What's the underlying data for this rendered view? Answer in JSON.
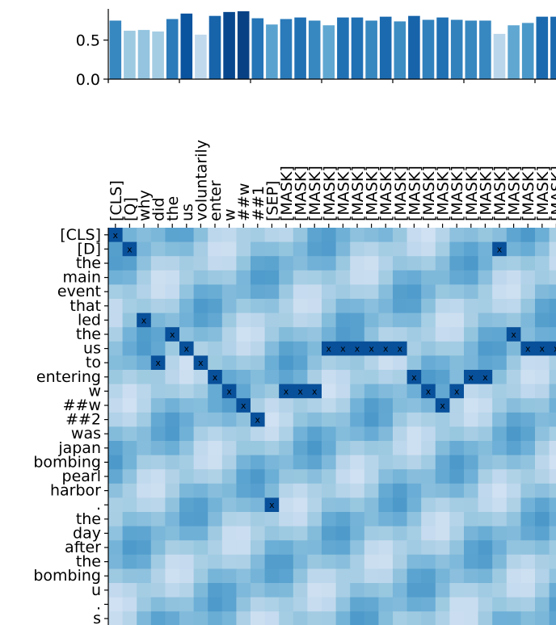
{
  "chart_data": [
    {
      "type": "bar",
      "categories": [
        "[CLS]",
        "[Q]",
        "why",
        "did",
        "the",
        "us",
        "voluntarily",
        "enter",
        "w",
        "##w",
        "##1",
        "[SEP]",
        "[MASK]",
        "[MASK]",
        "[MASK]",
        "[MASK]",
        "[MASK]",
        "[MASK]",
        "[MASK]",
        "[MASK]",
        "[MASK]",
        "[MASK]",
        "[MASK]",
        "[MASK]",
        "[MASK]",
        "[MASK]",
        "[MASK]",
        "[MASK]",
        "[MASK]",
        "[MASK]",
        "[MASK]",
        "[MASK]"
      ],
      "values": [
        0.75,
        0.62,
        0.63,
        0.61,
        0.77,
        0.84,
        0.57,
        0.81,
        0.86,
        0.87,
        0.78,
        0.7,
        0.77,
        0.79,
        0.75,
        0.69,
        0.79,
        0.79,
        0.75,
        0.8,
        0.74,
        0.81,
        0.76,
        0.79,
        0.76,
        0.75,
        0.75,
        0.58,
        0.69,
        0.72,
        0.8,
        0.8
      ],
      "yticks": [
        "0.0",
        "0.5"
      ],
      "ylim": [
        0,
        0.9
      ]
    },
    {
      "type": "heatmap",
      "x_labels": [
        "[CLS]",
        "[Q]",
        "why",
        "did",
        "the",
        "us",
        "voluntarily",
        "enter",
        "w",
        "##w",
        "##1",
        "[SEP]",
        "[MASK]",
        "[MASK]",
        "[MASK]",
        "[MASK]",
        "[MASK]",
        "[MASK]",
        "[MASK]",
        "[MASK]",
        "[MASK]",
        "[MASK]",
        "[MASK]",
        "[MASK]",
        "[MASK]",
        "[MASK]",
        "[MASK]",
        "[MASK]",
        "[MASK]",
        "[MASK]",
        "[MASK]",
        "[MASK]"
      ],
      "y_labels": [
        "[CLS]",
        "[D]",
        "the",
        "main",
        "event",
        "that",
        "led",
        "the",
        "us",
        "to",
        "entering",
        "w",
        "##w",
        "##2",
        "was",
        "japan",
        "bombing",
        "pearl",
        "harbor",
        ".",
        "the",
        "day",
        "after",
        "the",
        "bombing",
        "u",
        ".",
        "s"
      ],
      "marker": "x",
      "markers": [
        [
          0,
          0
        ],
        [
          1,
          1
        ],
        [
          1,
          27
        ],
        [
          6,
          2
        ],
        [
          7,
          4
        ],
        [
          7,
          28
        ],
        [
          8,
          5
        ],
        [
          8,
          15
        ],
        [
          8,
          16
        ],
        [
          8,
          17
        ],
        [
          8,
          18
        ],
        [
          8,
          19
        ],
        [
          8,
          20
        ],
        [
          8,
          29
        ],
        [
          8,
          30
        ],
        [
          8,
          31
        ],
        [
          9,
          3
        ],
        [
          9,
          6
        ],
        [
          10,
          7
        ],
        [
          10,
          21
        ],
        [
          10,
          25
        ],
        [
          10,
          26
        ],
        [
          11,
          8
        ],
        [
          11,
          12
        ],
        [
          11,
          13
        ],
        [
          11,
          14
        ],
        [
          11,
          22
        ],
        [
          11,
          24
        ],
        [
          12,
          9
        ],
        [
          12,
          23
        ],
        [
          13,
          10
        ],
        [
          19,
          11
        ]
      ],
      "colormap": "Blues",
      "color_low": "#f7fbff",
      "color_high": "#08306b"
    }
  ]
}
